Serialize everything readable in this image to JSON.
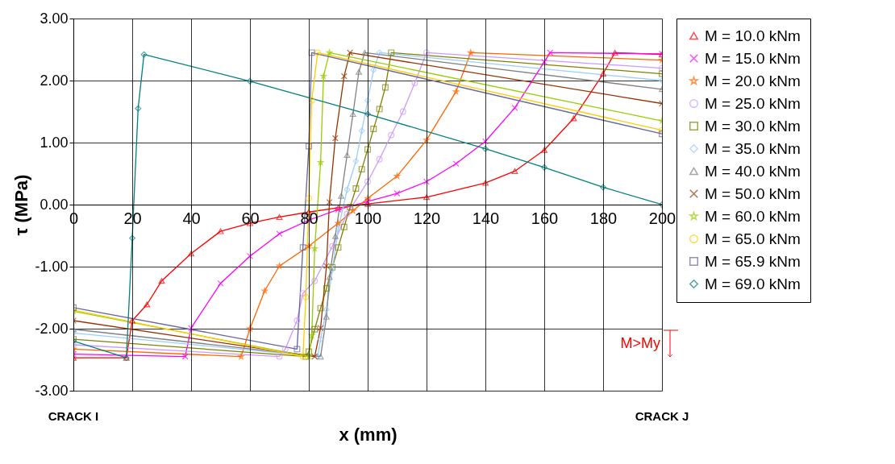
{
  "chart_data": {
    "type": "line",
    "xlabel": "x (mm)",
    "ylabel": "τ (MPa)",
    "xlim": [
      0,
      200
    ],
    "xticks": [
      0,
      20,
      40,
      60,
      80,
      100,
      120,
      140,
      160,
      180,
      200
    ],
    "ylim": [
      -3,
      3
    ],
    "yticks": [
      {
        "value": -3,
        "label": "-3.00"
      },
      {
        "value": -2,
        "label": "-2.00"
      },
      {
        "value": -1,
        "label": "-1.00"
      },
      {
        "value": 0,
        "label": "0.00"
      },
      {
        "value": 1,
        "label": "1.00"
      },
      {
        "value": 2,
        "label": "2.00"
      },
      {
        "value": 3,
        "label": "3.00"
      }
    ],
    "grid": true,
    "legend": "right",
    "annotations": [
      "CRACK I",
      "CRACK J",
      "M>My"
    ],
    "series": [
      {
        "name": "M = 10.0 kNm",
        "color": "#ff0000",
        "marker": "triangle",
        "x": [
          0,
          18,
          20,
          25,
          30,
          40,
          50,
          60,
          70,
          80,
          90,
          100,
          120,
          140,
          150,
          160,
          170,
          180,
          184,
          200
        ],
        "values": [
          -2.47,
          -2.47,
          -1.87,
          -1.61,
          -1.23,
          -0.79,
          -0.43,
          -0.3,
          -0.2,
          -0.12,
          -0.05,
          0.01,
          0.12,
          0.35,
          0.54,
          0.88,
          1.39,
          2.11,
          2.45,
          2.42
        ]
      },
      {
        "name": "M = 15.0 kNm",
        "color": "#ff00ff",
        "marker": "cross",
        "x": [
          0,
          38,
          40,
          50,
          60,
          70,
          80,
          90,
          100,
          110,
          120,
          130,
          140,
          150,
          160,
          162,
          200
        ],
        "values": [
          -2.41,
          -2.45,
          -1.99,
          -1.27,
          -0.83,
          -0.47,
          -0.25,
          -0.08,
          0.05,
          0.18,
          0.37,
          0.66,
          1.02,
          1.56,
          2.3,
          2.45,
          2.43
        ]
      },
      {
        "name": "M = 20.0 kNm",
        "color": "#ff6600",
        "marker": "star",
        "x": [
          0,
          57,
          60,
          65,
          70,
          80,
          90,
          95,
          100,
          110,
          120,
          130,
          135,
          200
        ],
        "values": [
          -2.33,
          -2.45,
          -2.0,
          -1.39,
          -0.99,
          -0.67,
          -0.3,
          -0.1,
          0.1,
          0.46,
          1.04,
          1.82,
          2.45,
          2.33
        ]
      },
      {
        "name": "M = 25.0 kNm",
        "color": "#cc99ff",
        "marker": "circle",
        "x": [
          0,
          70,
          72,
          76,
          78,
          82,
          88,
          93,
          100,
          104,
          108,
          112,
          116,
          120,
          200
        ],
        "values": [
          -2.26,
          -2.45,
          -2.33,
          -1.87,
          -1.43,
          -1.23,
          -0.67,
          -0.15,
          0.37,
          0.73,
          1.12,
          1.5,
          1.96,
          2.45,
          2.2
        ]
      },
      {
        "name": "M = 30.0 kNm",
        "color": "#808000",
        "marker": "square",
        "x": [
          0,
          79,
          80,
          82,
          84,
          86,
          88,
          90,
          92,
          94,
          96,
          98,
          100,
          102,
          104,
          106,
          108,
          200
        ],
        "values": [
          -2.17,
          -2.45,
          -2.37,
          -2.01,
          -1.67,
          -1.35,
          -1.01,
          -0.69,
          -0.36,
          -0.04,
          0.26,
          0.57,
          0.89,
          1.22,
          1.54,
          1.89,
          2.45,
          2.11
        ]
      },
      {
        "name": "M = 35.0 kNm",
        "color": "#99ccff",
        "marker": "diamond",
        "x": [
          0,
          83,
          84,
          86,
          88,
          90,
          93,
          96,
          98,
          100,
          102,
          104,
          200
        ],
        "values": [
          -2.07,
          -2.45,
          -2.17,
          -1.69,
          -1.05,
          -0.39,
          0.24,
          0.7,
          1.19,
          1.68,
          2.17,
          2.45,
          2.0
        ]
      },
      {
        "name": "M = 40.0 kNm",
        "color": "#808080",
        "marker": "triangle",
        "x": [
          0,
          84,
          86,
          87,
          89,
          91,
          93,
          95,
          97,
          99,
          200
        ],
        "values": [
          -2.01,
          -2.45,
          -1.81,
          -1.17,
          -0.51,
          0.14,
          0.8,
          1.46,
          2.14,
          2.45,
          1.86
        ]
      },
      {
        "name": "M = 50.0 kNm",
        "color": "#993300",
        "marker": "cross",
        "x": [
          0,
          82,
          84,
          86,
          87,
          89,
          92,
          94,
          200
        ],
        "values": [
          -1.87,
          -2.45,
          -1.99,
          -0.99,
          0.04,
          1.07,
          2.07,
          2.45,
          1.63
        ]
      },
      {
        "name": "M = 60.0 kNm",
        "color": "#99cc00",
        "marker": "star",
        "x": [
          0,
          80,
          81,
          82,
          84,
          85,
          87,
          200
        ],
        "values": [
          -1.72,
          -2.45,
          -2.11,
          -0.71,
          0.68,
          2.07,
          2.45,
          1.35
        ]
      },
      {
        "name": "M = 65.0 kNm",
        "color": "#ffcc00",
        "marker": "circle",
        "x": [
          0,
          78,
          79,
          80,
          81,
          83,
          200
        ],
        "values": [
          -1.7,
          -2.45,
          -1.49,
          0.1,
          1.68,
          2.45,
          1.2
        ]
      },
      {
        "name": "M = 65.9 kNm",
        "color": "#666699",
        "marker": "square",
        "x": [
          0,
          76,
          78,
          80,
          81,
          200
        ],
        "values": [
          -1.66,
          -2.33,
          -0.69,
          0.94,
          2.45,
          1.14
        ]
      },
      {
        "name": "M = 69.0 kNm",
        "color": "#008080",
        "marker": "diamond",
        "x": [
          0,
          18,
          20,
          22,
          24,
          60,
          100,
          140,
          160,
          180,
          200
        ],
        "values": [
          -2.2,
          -2.47,
          -0.54,
          1.55,
          2.42,
          1.99,
          1.46,
          0.9,
          0.6,
          0.28,
          0.0
        ]
      }
    ]
  }
}
